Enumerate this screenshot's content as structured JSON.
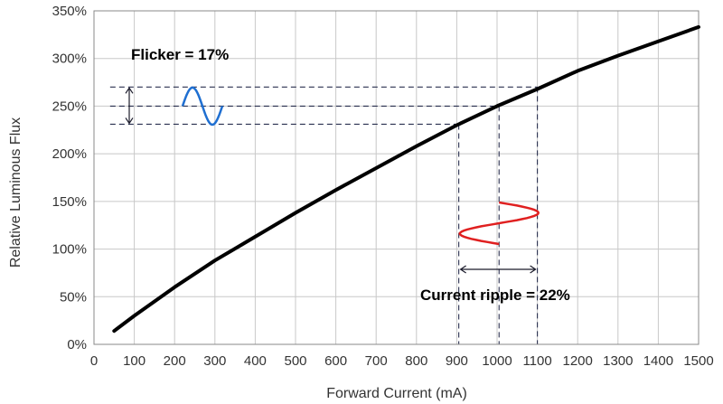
{
  "chart_data": {
    "type": "line",
    "xlabel": "Forward Current (mA)",
    "ylabel": "Relative Luminous Flux",
    "xlim": [
      0,
      1500
    ],
    "ylim": [
      0,
      350
    ],
    "x_ticks": [
      "0",
      "100",
      "200",
      "300",
      "400",
      "500",
      "600",
      "700",
      "800",
      "900",
      "1000",
      "1100",
      "1200",
      "1300",
      "1400",
      "1500"
    ],
    "y_ticks": [
      "0%",
      "50%",
      "100%",
      "150%",
      "200%",
      "250%",
      "300%",
      "350%"
    ],
    "grid": true,
    "series": [
      {
        "x": [
          50,
          100,
          200,
          300,
          400,
          500,
          600,
          700,
          800,
          900,
          1000,
          1100,
          1200,
          1300,
          1400,
          1500
        ],
        "y": [
          14,
          30,
          60,
          88,
          113,
          138,
          162,
          185,
          208,
          230,
          250,
          268,
          287,
          303,
          318,
          333
        ],
        "color": "#000000"
      }
    ],
    "annotations": {
      "flicker_label": "Flicker = 17%",
      "ripple_label": "Current ripple = 22%",
      "current_levels": [
        905,
        1005,
        1100
      ],
      "flux_levels": [
        231,
        250,
        270
      ],
      "flux_wave_color": "#1f6fd1",
      "current_wave_color": "#e02020"
    }
  }
}
